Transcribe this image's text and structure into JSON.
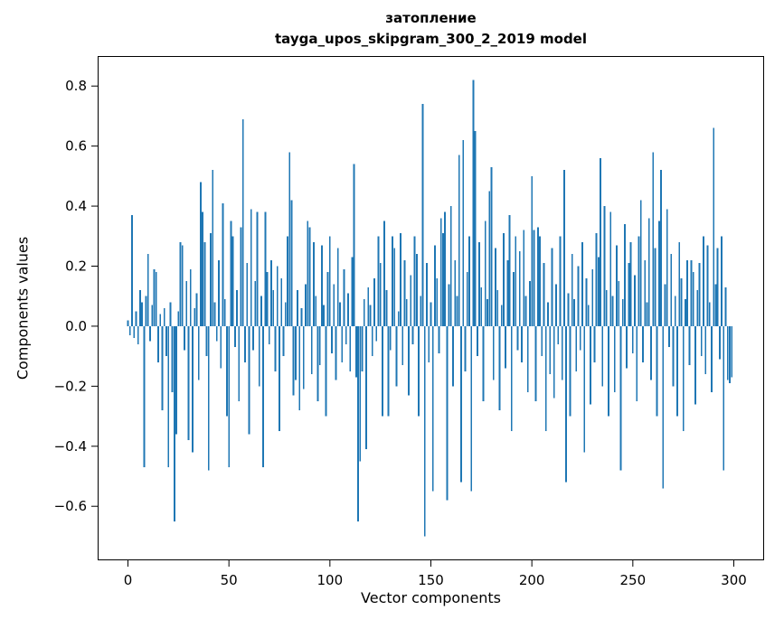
{
  "chart_data": {
    "type": "bar",
    "title": "затопление",
    "subtitle": "tayga_upos_skipgram_300_2_2019 model",
    "xlabel": "Vector components",
    "ylabel": "Components values",
    "xlim": [
      -15,
      315
    ],
    "ylim": [
      -0.78,
      0.9
    ],
    "grid": false,
    "bar_color": "#1f77b4",
    "xticks": [
      0,
      50,
      100,
      150,
      200,
      250,
      300
    ],
    "yticks": [
      -0.6,
      -0.4,
      -0.2,
      0.0,
      0.2,
      0.4,
      0.6,
      0.8
    ],
    "ytick_labels": [
      "−0.6",
      "−0.4",
      "−0.2",
      "0.0",
      "0.2",
      "0.4",
      "0.6",
      "0.8"
    ],
    "x_start": 0,
    "values": [
      0.02,
      -0.03,
      0.37,
      -0.04,
      0.05,
      -0.06,
      0.12,
      0.08,
      -0.47,
      0.1,
      0.24,
      -0.05,
      0.07,
      0.19,
      0.18,
      -0.12,
      0.04,
      -0.28,
      0.06,
      -0.1,
      -0.47,
      0.08,
      -0.22,
      -0.65,
      -0.36,
      0.05,
      0.28,
      0.27,
      -0.08,
      0.15,
      -0.38,
      0.19,
      -0.42,
      0.06,
      0.11,
      -0.18,
      0.48,
      0.38,
      0.28,
      -0.1,
      -0.48,
      0.31,
      0.52,
      0.08,
      -0.05,
      0.22,
      -0.14,
      0.41,
      0.09,
      -0.3,
      -0.47,
      0.35,
      0.3,
      -0.07,
      0.12,
      -0.25,
      0.33,
      0.69,
      -0.12,
      0.21,
      -0.36,
      0.39,
      -0.08,
      0.15,
      0.38,
      -0.2,
      0.1,
      -0.47,
      0.38,
      0.18,
      -0.06,
      0.22,
      0.12,
      -0.15,
      0.2,
      -0.35,
      0.16,
      -0.1,
      0.08,
      0.3,
      0.58,
      0.42,
      -0.23,
      -0.18,
      0.12,
      -0.28,
      0.06,
      -0.21,
      0.14,
      0.35,
      0.33,
      -0.16,
      0.28,
      0.1,
      -0.25,
      -0.13,
      0.27,
      0.07,
      -0.3,
      0.18,
      0.3,
      -0.09,
      0.14,
      -0.18,
      0.26,
      0.08,
      -0.12,
      0.19,
      -0.06,
      0.11,
      -0.15,
      0.23,
      0.54,
      -0.17,
      -0.65,
      -0.45,
      -0.15,
      0.09,
      -0.41,
      0.13,
      0.07,
      -0.1,
      0.16,
      -0.05,
      0.3,
      0.21,
      -0.3,
      0.35,
      0.12,
      -0.3,
      -0.08,
      0.3,
      0.26,
      -0.2,
      0.05,
      0.31,
      -0.13,
      0.22,
      0.09,
      -0.23,
      0.17,
      -0.06,
      0.3,
      0.24,
      -0.3,
      0.1,
      0.74,
      -0.7,
      0.21,
      -0.12,
      0.08,
      -0.55,
      0.27,
      0.16,
      -0.09,
      0.36,
      0.31,
      0.38,
      -0.58,
      0.14,
      0.4,
      -0.2,
      0.22,
      0.1,
      0.57,
      -0.52,
      0.62,
      -0.15,
      0.18,
      0.3,
      -0.55,
      0.82,
      0.65,
      -0.1,
      0.28,
      0.13,
      -0.25,
      0.35,
      0.09,
      0.45,
      0.53,
      -0.18,
      0.26,
      0.12,
      -0.28,
      0.07,
      0.31,
      -0.14,
      0.22,
      0.37,
      -0.35,
      0.18,
      0.3,
      -0.08,
      0.25,
      -0.12,
      0.32,
      0.1,
      -0.22,
      0.15,
      0.5,
      0.32,
      -0.25,
      0.33,
      0.3,
      -0.1,
      0.21,
      -0.35,
      0.08,
      -0.16,
      0.26,
      -0.24,
      0.14,
      -0.06,
      0.3,
      -0.18,
      0.52,
      -0.52,
      0.11,
      -0.3,
      0.24,
      0.09,
      -0.15,
      0.2,
      -0.08,
      0.28,
      -0.42,
      0.16,
      0.07,
      -0.26,
      0.19,
      -0.12,
      0.31,
      0.23,
      0.56,
      -0.2,
      0.4,
      0.12,
      -0.3,
      0.38,
      0.1,
      -0.22,
      0.27,
      0.15,
      -0.48,
      0.09,
      0.34,
      -0.14,
      0.21,
      0.28,
      -0.09,
      0.17,
      -0.25,
      0.3,
      0.42,
      -0.12,
      0.22,
      0.08,
      0.36,
      -0.18,
      0.58,
      0.26,
      -0.3,
      0.35,
      0.52,
      -0.54,
      0.14,
      0.39,
      -0.07,
      0.24,
      -0.2,
      0.1,
      -0.3,
      0.28,
      0.16,
      -0.35,
      0.09,
      0.22,
      -0.13,
      0.22,
      0.18,
      -0.26,
      0.12,
      0.21,
      -0.1,
      0.3,
      -0.16,
      0.27,
      0.08,
      -0.22,
      0.66,
      0.14,
      0.26,
      -0.11,
      0.3,
      -0.48,
      0.13,
      -0.18,
      -0.19,
      -0.17
    ]
  }
}
